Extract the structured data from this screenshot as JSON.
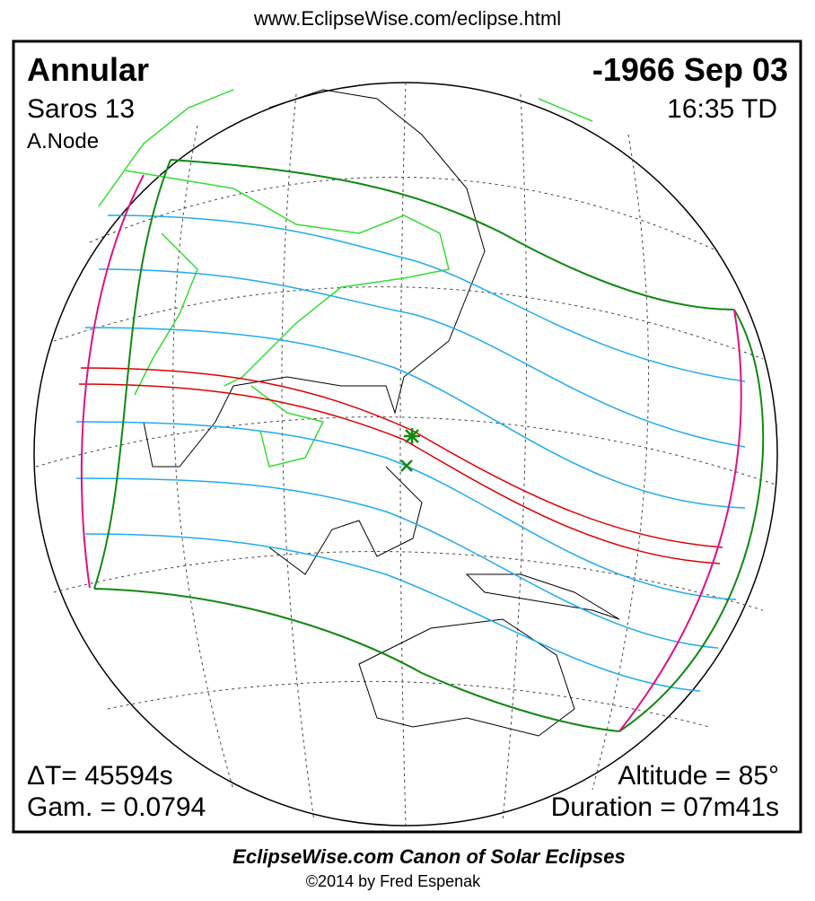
{
  "header": {
    "url": "www.EclipseWise.com/eclipse.html"
  },
  "eclipse": {
    "type": "Annular",
    "saros": "Saros  13",
    "node": "A.Node",
    "date": "-1966 Sep 03",
    "time": "16:35 TD",
    "delta_t": "ΔT=  45594s",
    "gamma": "Gam. = 0.0794",
    "altitude": "Altitude = 85°",
    "duration": "Duration = 07m41s"
  },
  "footer": {
    "title": "EclipseWise.com Canon of Solar Eclipses",
    "copyright": "©2014 by Fred Espenak"
  }
}
